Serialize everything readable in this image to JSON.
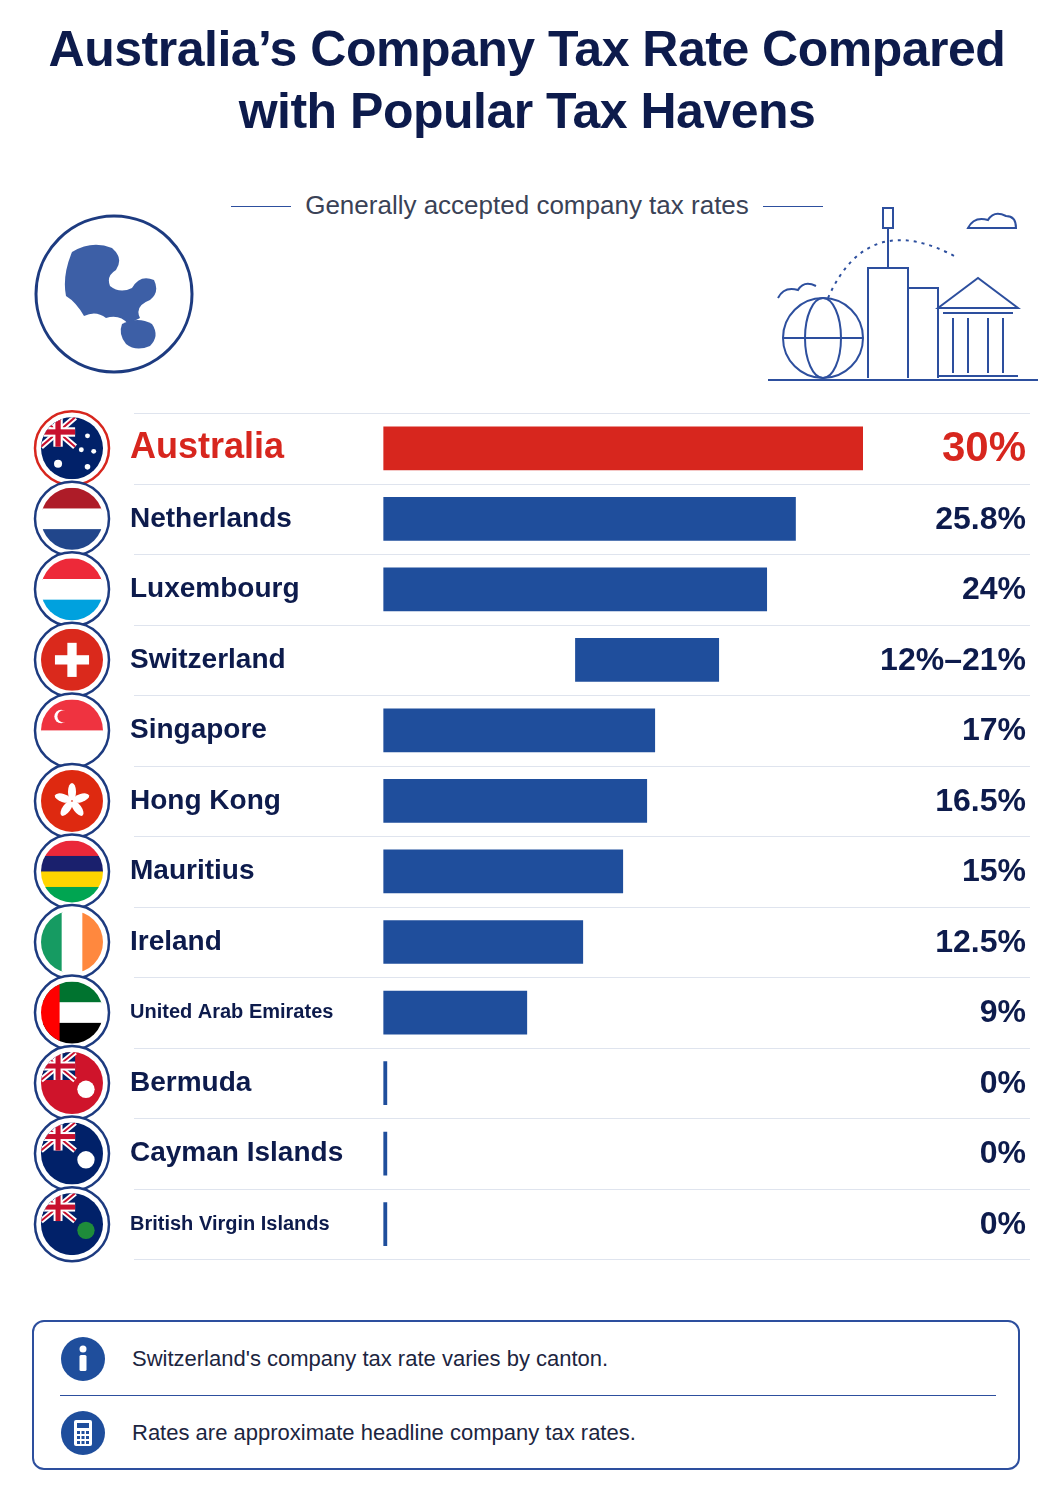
{
  "chart_data": {
    "type": "bar",
    "orientation": "horizontal",
    "title": "Australia’s Company Tax Rate Compared with Popular Tax Havens",
    "subtitle": "Generally accepted company tax rates",
    "categories": [
      "Australia",
      "Netherlands",
      "Luxembourg",
      "Switzerland",
      "Singapore",
      "Hong Kong",
      "Mauritius",
      "Ireland",
      "United Arab Emirates",
      "Bermuda",
      "Cayman Islands",
      "British Virgin Islands"
    ],
    "values": [
      30,
      25.8,
      24,
      [
        12,
        21
      ],
      17,
      16.5,
      15,
      12.5,
      9,
      0,
      0,
      0
    ],
    "value_labels": [
      "30%",
      "25.8%",
      "24%",
      "12%–21%",
      "17%",
      "16.5%",
      "15%",
      "12.5%",
      "9%",
      "0%",
      "0%",
      "0%"
    ],
    "colors": [
      "#d7261e",
      "#1f4e9c",
      "#1f4e9c",
      "#1f4e9c",
      "#1f4e9c",
      "#1f4e9c",
      "#1f4e9c",
      "#1f4e9c",
      "#1f4e9c",
      "#1f4e9c",
      "#1f4e9c",
      "#1f4e9c"
    ],
    "xlim": [
      0,
      30
    ],
    "data_labels": true,
    "tick_labels": "y",
    "annotations": [
      "Switzerland's company tax rate varies by canton.",
      "Rates are approximate headline company tax rates."
    ]
  }
}
